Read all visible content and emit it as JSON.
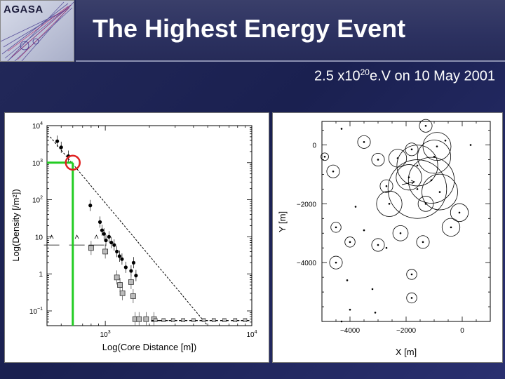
{
  "logo": {
    "text": "AGASA"
  },
  "header": {
    "title": "The Highest Energy Event",
    "subtitle_pre": "2.5 x10",
    "subtitle_sup": "20",
    "subtitle_post": "e.V on 10 May 2001"
  },
  "chart_data": [
    {
      "type": "scatter",
      "xlabel": "Log(Core Distance [m])",
      "ylabel": "Log(Density [/m²])",
      "x_scale": "log",
      "y_scale": "log",
      "xlim": [
        400,
        10000
      ],
      "ylim": [
        0.04,
        10000
      ],
      "x_ticks": [
        {
          "value": 1000,
          "base": "10",
          "exp": "3"
        },
        {
          "value": 10000,
          "base": "10",
          "exp": "4"
        }
      ],
      "y_ticks": [
        {
          "value": 10000,
          "base": "10",
          "exp": "4"
        },
        {
          "value": 1000,
          "base": "10",
          "exp": "3"
        },
        {
          "value": 100,
          "base": "10",
          "exp": "2"
        },
        {
          "value": 10,
          "base": "10",
          "exp": ""
        },
        {
          "value": 1,
          "base": "1",
          "exp": ""
        },
        {
          "value": 0.1,
          "base": "10",
          "exp": "−1"
        }
      ],
      "fit_line": {
        "x": [
          420,
          5000
        ],
        "y": [
          5000,
          0.04
        ]
      },
      "highlight": {
        "x": 600,
        "y": 1000,
        "color": "#e02020"
      },
      "guide_color": "#22cc22",
      "series": [
        {
          "marker": "filled-circle",
          "points": [
            {
              "x": 470,
              "y": 3800
            },
            {
              "x": 500,
              "y": 2600
            },
            {
              "x": 560,
              "y": 1500
            },
            {
              "x": 790,
              "y": 70
            },
            {
              "x": 920,
              "y": 25
            },
            {
              "x": 950,
              "y": 15
            },
            {
              "x": 980,
              "y": 12
            },
            {
              "x": 1010,
              "y": 8
            },
            {
              "x": 1060,
              "y": 10
            },
            {
              "x": 1100,
              "y": 7
            },
            {
              "x": 1150,
              "y": 6
            },
            {
              "x": 1200,
              "y": 4
            },
            {
              "x": 1250,
              "y": 3
            },
            {
              "x": 1300,
              "y": 2.5
            },
            {
              "x": 1380,
              "y": 1.5
            },
            {
              "x": 1500,
              "y": 1.2
            },
            {
              "x": 1560,
              "y": 2.0
            },
            {
              "x": 1620,
              "y": 0.9
            }
          ]
        },
        {
          "marker": "open-square",
          "points": [
            {
              "x": 800,
              "y": 5
            },
            {
              "x": 1000,
              "y": 4
            },
            {
              "x": 1200,
              "y": 0.8
            },
            {
              "x": 1260,
              "y": 0.5
            },
            {
              "x": 1310,
              "y": 0.3
            },
            {
              "x": 1500,
              "y": 0.6
            },
            {
              "x": 1550,
              "y": 0.25
            },
            {
              "x": 1600,
              "y": 0.06
            },
            {
              "x": 1700,
              "y": 0.06
            },
            {
              "x": 1900,
              "y": 0.06
            },
            {
              "x": 2150,
              "y": 0.06
            }
          ]
        },
        {
          "marker": "upper-limit",
          "points": [
            {
              "x": 430,
              "y": 6
            },
            {
              "x": 640,
              "y": 6
            },
            {
              "x": 870,
              "y": 6
            }
          ]
        },
        {
          "marker": "upper-limit-floor",
          "points": [
            {
              "x": 2200,
              "y": 0.06
            },
            {
              "x": 2500,
              "y": 0.06
            },
            {
              "x": 2900,
              "y": 0.06
            },
            {
              "x": 3400,
              "y": 0.06
            },
            {
              "x": 4000,
              "y": 0.06
            },
            {
              "x": 4700,
              "y": 0.06
            },
            {
              "x": 5500,
              "y": 0.06
            },
            {
              "x": 6500,
              "y": 0.06
            },
            {
              "x": 7700,
              "y": 0.06
            },
            {
              "x": 9000,
              "y": 0.06
            }
          ]
        }
      ]
    },
    {
      "type": "scatter",
      "xlabel": "X [m]",
      "ylabel": "Y [m]",
      "xlim": [
        -5000,
        1000
      ],
      "ylim": [
        -6000,
        800
      ],
      "x_ticks": [
        {
          "value": -4000,
          "label": "−4000"
        },
        {
          "value": -2000,
          "label": "−2000"
        },
        {
          "value": 0,
          "label": "0"
        }
      ],
      "y_ticks": [
        {
          "value": 0,
          "label": "0"
        },
        {
          "value": -2000,
          "label": "−2000"
        },
        {
          "value": -4000,
          "label": "−4000"
        }
      ],
      "detectors": [
        {
          "x": -1300,
          "y": 650,
          "r": 0.5
        },
        {
          "x": -4300,
          "y": 550,
          "r": 0
        },
        {
          "x": -3500,
          "y": 100,
          "r": 0.5
        },
        {
          "x": -1800,
          "y": -150,
          "r": 0.5
        },
        {
          "x": -900,
          "y": -50,
          "r": 1.1
        },
        {
          "x": 300,
          "y": 0,
          "r": 0
        },
        {
          "x": -600,
          "y": 150,
          "r": 0
        },
        {
          "x": -4900,
          "y": -400,
          "r": 0.3
        },
        {
          "x": -3000,
          "y": -500,
          "r": 0.5
        },
        {
          "x": -2300,
          "y": -450,
          "r": 0.7
        },
        {
          "x": -1000,
          "y": -400,
          "r": 1.3
        },
        {
          "x": -1600,
          "y": -700,
          "r": 1.6
        },
        {
          "x": -4600,
          "y": -900,
          "r": 0.5
        },
        {
          "x": -2700,
          "y": -1400,
          "r": 0.5
        },
        {
          "x": -1900,
          "y": -1100,
          "r": 1.0
        },
        {
          "x": -1100,
          "y": -1200,
          "r": 1.8
        },
        {
          "x": -1600,
          "y": -1500,
          "r": 2.3
        },
        {
          "x": -800,
          "y": -1600,
          "r": 1.4
        },
        {
          "x": -2600,
          "y": -2000,
          "r": 1.0
        },
        {
          "x": -1300,
          "y": -2000,
          "r": 0.6
        },
        {
          "x": -3800,
          "y": -2100,
          "r": 0
        },
        {
          "x": -100,
          "y": -2300,
          "r": 0.7
        },
        {
          "x": -4500,
          "y": -2800,
          "r": 0.4
        },
        {
          "x": -3500,
          "y": -2900,
          "r": 0
        },
        {
          "x": -4000,
          "y": -3300,
          "r": 0.4
        },
        {
          "x": -3000,
          "y": -3400,
          "r": 0.5
        },
        {
          "x": -2200,
          "y": -3000,
          "r": 0.6
        },
        {
          "x": -1400,
          "y": -3300,
          "r": 0.5
        },
        {
          "x": -2700,
          "y": -3500,
          "r": 0
        },
        {
          "x": -400,
          "y": -2800,
          "r": 0.7
        },
        {
          "x": -4500,
          "y": -4000,
          "r": 0.5
        },
        {
          "x": -1800,
          "y": -4400,
          "r": 0.4
        },
        {
          "x": -3200,
          "y": -4900,
          "r": 0
        },
        {
          "x": -1800,
          "y": -5200,
          "r": 0.4
        },
        {
          "x": -4100,
          "y": -4600,
          "r": 0
        },
        {
          "x": -4000,
          "y": -5600,
          "r": 0
        },
        {
          "x": -3100,
          "y": -5700,
          "r": 0
        },
        {
          "x": -4300,
          "y": -6000,
          "r": 0
        }
      ],
      "core": {
        "x": -1900,
        "y": -1300
      }
    }
  ]
}
